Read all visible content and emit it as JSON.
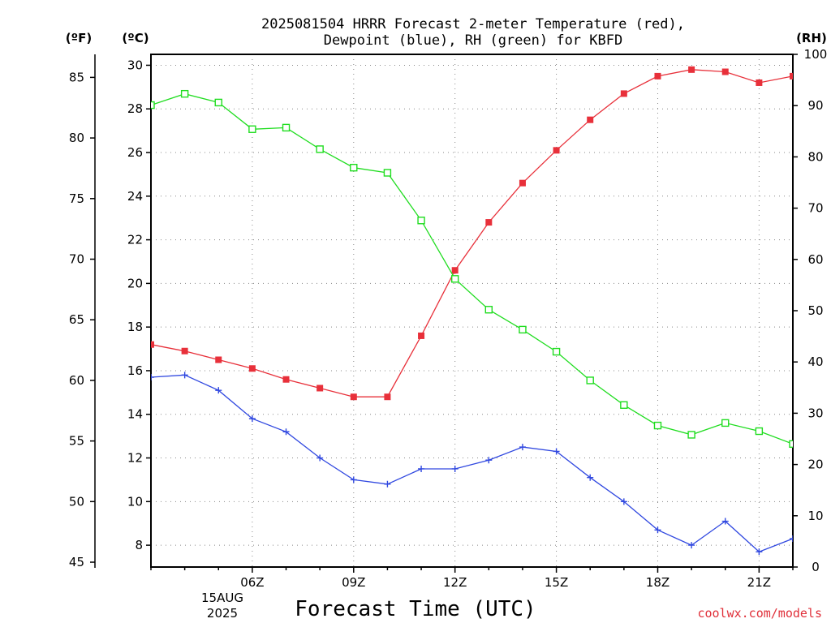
{
  "chart_data": {
    "type": "line",
    "title": [
      "2025081504 HRRR Forecast 2-meter Temperature (red),",
      "Dewpoint (blue), RH (green) for KBFD"
    ],
    "xlabel": "Forecast Time (UTC)",
    "units": {
      "left_outer": "(ºF)",
      "left_inner": "(ºC)",
      "right": "(RH)"
    },
    "x_hours": [
      3,
      4,
      5,
      6,
      7,
      8,
      9,
      10,
      11,
      12,
      13,
      14,
      15,
      16,
      17,
      18,
      19,
      20,
      21,
      22
    ],
    "xlim": [
      3,
      22
    ],
    "x_ticks": [
      {
        "hour": 6,
        "label": "06Z"
      },
      {
        "hour": 9,
        "label": "09Z"
      },
      {
        "hour": 12,
        "label": "12Z"
      },
      {
        "hour": 15,
        "label": "15Z"
      },
      {
        "hour": 18,
        "label": "18Z"
      },
      {
        "hour": 21,
        "label": "21Z"
      }
    ],
    "date_label": [
      "15AUG",
      "2025"
    ],
    "celsius_axis": {
      "lim": [
        7,
        30.5
      ],
      "ticks": [
        "8",
        "10",
        "12",
        "14",
        "16",
        "18",
        "20",
        "22",
        "24",
        "26",
        "28",
        "30"
      ]
    },
    "fahrenheit_axis": {
      "ticks": [
        "45",
        "50",
        "55",
        "60",
        "65",
        "70",
        "75",
        "80",
        "85"
      ]
    },
    "rh_axis": {
      "lim": [
        0,
        100
      ],
      "ticks": [
        "0",
        "10",
        "20",
        "30",
        "40",
        "50",
        "60",
        "70",
        "80",
        "90",
        "100"
      ]
    },
    "grid": true,
    "series": [
      {
        "name": "Temperature (red)",
        "axis": "celsius",
        "color": "#e8303a",
        "marker": "filled-square",
        "values": [
          17.2,
          16.9,
          16.5,
          16.1,
          15.6,
          15.2,
          14.8,
          14.8,
          17.6,
          20.6,
          22.8,
          24.6,
          26.1,
          27.5,
          28.7,
          29.5,
          29.8,
          29.7,
          29.2,
          29.5
        ]
      },
      {
        "name": "Dewpoint (blue)",
        "axis": "celsius",
        "color": "#3048e0",
        "marker": "plus",
        "values": [
          15.7,
          15.8,
          15.1,
          13.8,
          13.2,
          12.0,
          11.0,
          10.8,
          11.5,
          11.5,
          11.9,
          12.5,
          12.3,
          11.1,
          10.0,
          8.7,
          8.0,
          9.1,
          7.7,
          8.3
        ]
      },
      {
        "name": "RH (green)",
        "axis": "rh",
        "color": "#20dd20",
        "marker": "open-square",
        "values": [
          90.1,
          92.3,
          90.6,
          85.4,
          85.7,
          81.5,
          77.9,
          76.9,
          67.6,
          56.2,
          50.2,
          46.3,
          42.0,
          36.4,
          31.6,
          27.6,
          25.8,
          28.1,
          26.5,
          24.0
        ]
      }
    ]
  },
  "credit": "coolwx.com/models"
}
